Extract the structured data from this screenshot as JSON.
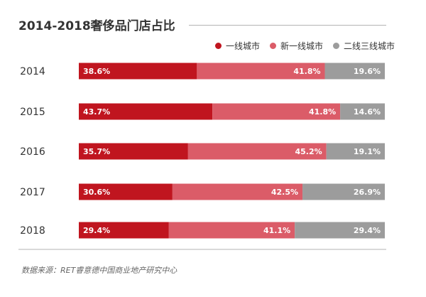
{
  "chart_data": {
    "type": "bar",
    "orientation": "horizontal",
    "stacked": true,
    "title": "2014-2018奢侈品门店占比",
    "categories": [
      "2014",
      "2015",
      "2016",
      "2017",
      "2018"
    ],
    "series": [
      {
        "name": "一线城市",
        "color": "#c0151f",
        "values": [
          38.6,
          43.7,
          35.7,
          30.6,
          29.4
        ],
        "labels": [
          "38.6%",
          "43.7%",
          "35.7%",
          "30.6%",
          "29.4%"
        ]
      },
      {
        "name": "新一线城市",
        "color": "#db5c68",
        "values": [
          41.8,
          41.8,
          45.2,
          42.5,
          41.1
        ],
        "labels": [
          "41.8%",
          "41.8%",
          "45.2%",
          "42.5%",
          "41.1%"
        ]
      },
      {
        "name": "二线三线城市",
        "color": "#9c9c9c",
        "values": [
          19.6,
          14.6,
          19.1,
          26.9,
          29.4
        ],
        "labels": [
          "19.6%",
          "14.6%",
          "19.1%",
          "26.9%",
          "29.4%"
        ]
      }
    ],
    "legend_position": "top-right",
    "grid": false
  },
  "source": "数据来源：RET睿意德中国商业地产研究中心"
}
